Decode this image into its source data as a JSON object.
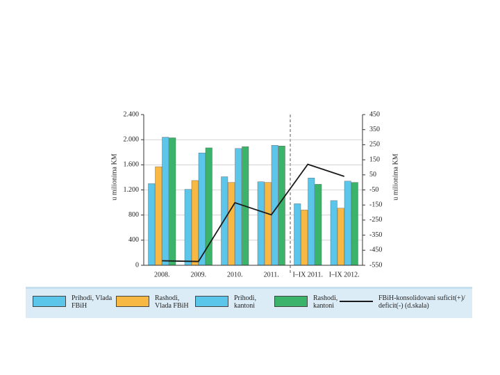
{
  "chart_data": {
    "type": "bar",
    "y_label": "u milionima KM",
    "y2_label": "u milionima KM",
    "categories": [
      "2008.",
      "2009.",
      "2010.",
      "2011.",
      "I–IX 2011.",
      "I–IX 2012."
    ],
    "series": [
      {
        "name": "Prihodi, Vlada FBiH",
        "color": "#5cc6ea",
        "values": [
          1300,
          1210,
          1410,
          1330,
          980,
          1030
        ]
      },
      {
        "name": "Rashodi, Vlada FBiH",
        "color": "#f7b844",
        "values": [
          1570,
          1350,
          1320,
          1320,
          880,
          910
        ]
      },
      {
        "name": "Prihodi, kantoni",
        "color": "#5cc6ea",
        "values": [
          2040,
          1790,
          1860,
          1910,
          1390,
          1340
        ]
      },
      {
        "name": "Rashodi, kantoni",
        "color": "#3bb36a",
        "values": [
          2030,
          1870,
          1890,
          1900,
          1290,
          1320
        ]
      },
      {
        "name": "FBiH-konsolidovani suficit(+)/ deficit(-) (d.skala)",
        "color": "#1a1a1a",
        "type": "line",
        "axis": "y2",
        "values": [
          -520,
          -525,
          -135,
          -215,
          120,
          40
        ]
      }
    ],
    "ylim": [
      0,
      2400
    ],
    "yticks": [
      0,
      400,
      800,
      {
        "value": 1200,
        "label": "1.200"
      },
      {
        "value": 1600,
        "label": "1.600"
      },
      {
        "value": 2000,
        "label": "2.000"
      },
      {
        "value": 2400,
        "label": "2.400"
      }
    ],
    "y2lim": [
      -550,
      450
    ],
    "y2ticks": [
      -550,
      -450,
      -350,
      -250,
      -150,
      -50,
      50,
      150,
      250,
      350,
      450
    ],
    "grid": true
  }
}
